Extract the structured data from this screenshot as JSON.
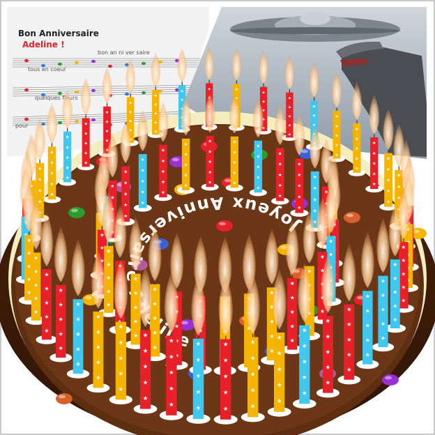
{
  "song_sheet": {
    "title": "Bon Anniversaire",
    "name": "Adeline !",
    "lyrics_1": "tous en coeur",
    "lyrics_2": "bon an ni ver saire",
    "lyrics_3": "quelques fleurs",
    "lyrics_4": "pour"
  },
  "cake_message": {
    "text": "Joyeux Anniversaire Adeline !"
  },
  "colors": {
    "frame_border": "#c9c9c9",
    "cake_chocolate": "#5a2d10",
    "cake_top": "#6b3716",
    "cake_rim_cream": "#f3edc0",
    "candle_red": "#e8202a",
    "candle_yellow": "#f5b400",
    "candle_cyan": "#3ec8f0",
    "flame": "#ffd9a8",
    "text_white": "#ffffff",
    "name_red": "#e8202a"
  },
  "icons": {
    "candles": "candle-icon",
    "flames": "flame-icon",
    "sweets": "candy-icon",
    "spaceship": "flying-saucer-illustration",
    "dinosaur": "dinosaur-illustration"
  }
}
